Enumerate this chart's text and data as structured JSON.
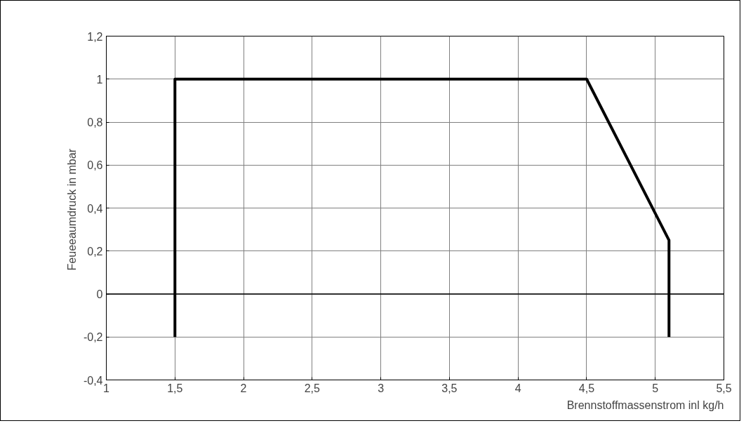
{
  "chart_data": {
    "type": "line",
    "xlabel": "Brennstoffmassenstrom inl kg/h",
    "ylabel": "Feueeaumdruck in  mbar",
    "x": [
      1.5,
      1.5,
      4.5,
      5.1,
      5.1
    ],
    "series": [
      {
        "color": "#000000",
        "values": [
          -0.2,
          1,
          1,
          0.25,
          -0.2
        ]
      }
    ],
    "xlim": [
      1,
      5.5
    ],
    "ylim": [
      -0.4,
      1.2
    ],
    "xticks": [
      1,
      {
        "value": 1.5,
        "label": "1,5"
      },
      2,
      {
        "value": 2.5,
        "label": "2,5"
      },
      3,
      {
        "value": 3.5,
        "label": "3,5"
      },
      4,
      {
        "value": 4.5,
        "label": "4,5"
      },
      5,
      {
        "value": 5.5,
        "label": "5,5"
      }
    ],
    "yticks": [
      {
        "value": -0.4,
        "label": "-0,4"
      },
      {
        "value": -0.2,
        "label": "-0,2"
      },
      0,
      {
        "value": 0.2,
        "label": "0,2"
      },
      {
        "value": 0.4,
        "label": "0,4"
      },
      {
        "value": 0.6,
        "label": "0,6"
      },
      {
        "value": 0.8,
        "label": "0,8"
      },
      1,
      {
        "value": 1.2,
        "label": "1,2"
      }
    ],
    "ref_lines": [
      {
        "axis": "y",
        "value": 0,
        "color": "#000000"
      }
    ],
    "grid": true,
    "marker": "none",
    "line_style": "solid"
  }
}
